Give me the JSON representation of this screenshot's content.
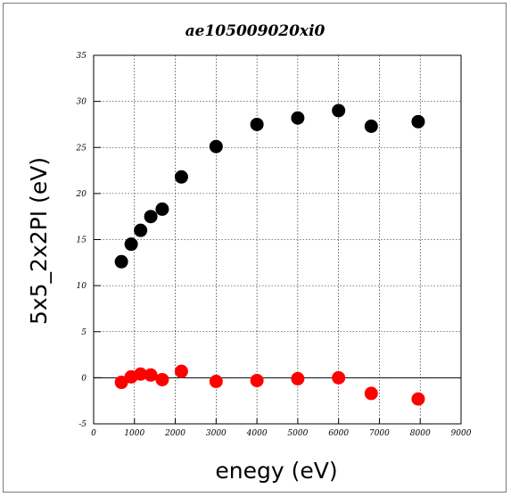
{
  "chart_data": {
    "type": "scatter",
    "title": "ae105009020xi0",
    "xlabel": "enegy (eV)",
    "ylabel": "5x5_2x2PI (eV)",
    "xlim": [
      0,
      9000
    ],
    "ylim": [
      -5,
      35
    ],
    "xticks": [
      0,
      1000,
      2000,
      3000,
      4000,
      5000,
      6000,
      7000,
      8000,
      9000
    ],
    "yticks": [
      -5,
      0,
      5,
      10,
      15,
      20,
      25,
      30,
      35
    ],
    "grid": true,
    "zero_line": true,
    "series": [
      {
        "color": "#000000",
        "x": [
          680,
          920,
          1150,
          1400,
          1680,
          2150,
          3000,
          4000,
          5000,
          6000,
          6800,
          7950
        ],
        "y": [
          12.6,
          14.5,
          16.0,
          17.5,
          18.3,
          21.8,
          25.1,
          27.5,
          28.2,
          29.0,
          27.3,
          27.8
        ]
      },
      {
        "color": "#ff0000",
        "x": [
          680,
          920,
          1150,
          1400,
          1680,
          2150,
          3000,
          4000,
          5000,
          6000,
          6800,
          7950
        ],
        "y": [
          -0.5,
          0.1,
          0.4,
          0.3,
          -0.2,
          0.7,
          -0.4,
          -0.3,
          -0.1,
          0.0,
          -1.7,
          -2.3
        ]
      }
    ]
  }
}
